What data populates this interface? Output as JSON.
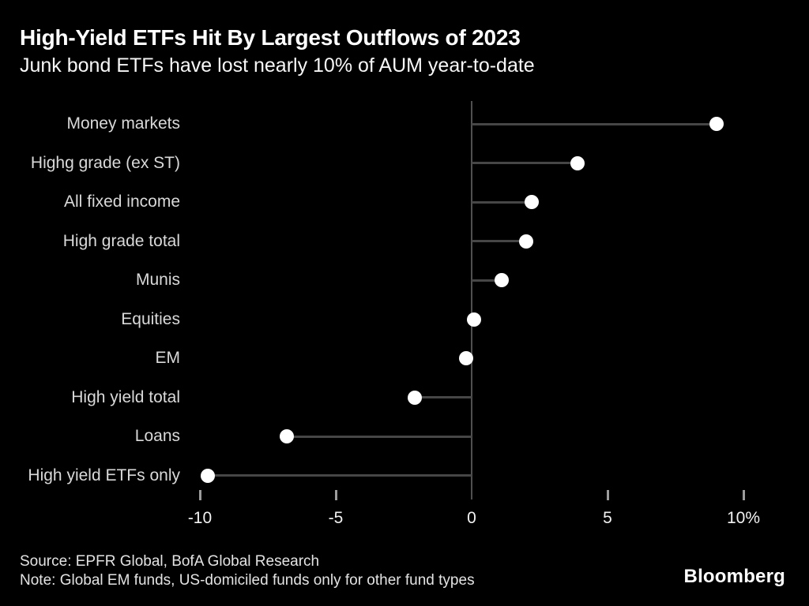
{
  "header": {
    "title": "High-Yield ETFs Hit By Largest Outflows of 2023",
    "subtitle": "Junk bond ETFs have lost nearly 10% of AUM year-to-date"
  },
  "footer": {
    "source": "Source: EPFR Global, BofA Global Research",
    "note": "Note: Global EM funds, US-domiciled funds only for other fund types",
    "brand": "Bloomberg"
  },
  "colors": {
    "background": "#000000",
    "title_text": "#ffffff",
    "category_label": "#d9d9d9",
    "stem": "#464646",
    "axis_line": "#505050",
    "tick_mark": "#9c9c9c",
    "tick_label": "#f2f2f2",
    "dot": "#ffffff"
  },
  "chart_data": {
    "type": "bar",
    "style": "lollipop",
    "orientation": "horizontal",
    "title": "High-Yield ETFs Hit By Largest Outflows of 2023",
    "subtitle": "Junk bond ETFs have lost nearly 10% of AUM year-to-date",
    "categories": [
      "Money markets",
      "Highg grade (ex ST)",
      "All fixed income",
      "High grade total",
      "Munis",
      "Equities",
      "EM",
      "High yield total",
      "Loans",
      "High yield ETFs only"
    ],
    "values": [
      9.0,
      3.9,
      2.2,
      2.0,
      1.1,
      0.1,
      -0.2,
      -2.1,
      -6.8,
      -9.7
    ],
    "unit": "% of AUM year-to-date",
    "xlabel": "",
    "ylabel": "",
    "xlim": [
      -10.6,
      10.6
    ],
    "xticks": [
      -10,
      -5,
      0,
      5,
      10
    ],
    "xtick_labels": [
      "-10",
      "-5",
      "0",
      "5",
      "10%"
    ],
    "grid": false,
    "legend": "none",
    "baseline": 0
  }
}
